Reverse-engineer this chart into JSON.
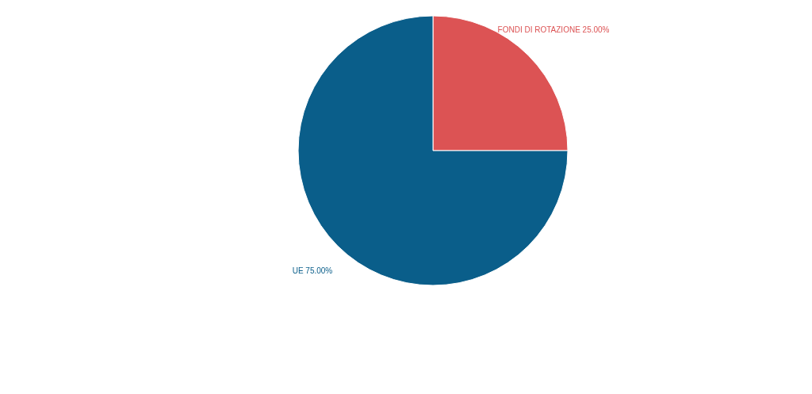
{
  "chart_data": {
    "type": "pie",
    "categories": [
      "FONDI DI ROTAZIONE",
      "UE"
    ],
    "values": [
      25,
      75
    ],
    "value_labels": [
      "25.00%",
      "75.00%"
    ],
    "colors": [
      "#dc5354",
      "#0a5e8a"
    ]
  }
}
